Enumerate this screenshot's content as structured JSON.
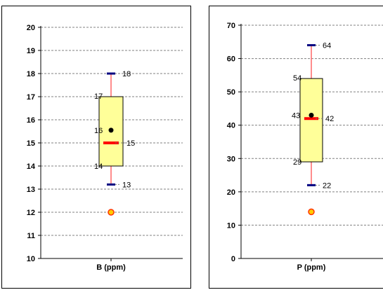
{
  "chart_data": [
    {
      "type": "box",
      "xlabel": "B (ppm)",
      "ylim": [
        10,
        20
      ],
      "yticks": [
        10,
        11,
        12,
        13,
        14,
        15,
        16,
        17,
        18,
        19,
        20
      ],
      "grid": true,
      "box": {
        "min": 13.2,
        "q1": 14,
        "median": 15,
        "mean": 15.55,
        "q3": 17,
        "max": 18,
        "outlier": 12
      },
      "labels": {
        "max": "18",
        "q3": "17",
        "mean": "16",
        "median": "15",
        "q1": "14",
        "min": "13"
      },
      "colors": {
        "box_fill": "#ffff99",
        "median": "#ff0000",
        "whisker": "#ff6666",
        "cap": "#000080",
        "outlier_fill": "#ffcc00",
        "outlier_stroke": "#ff3300",
        "mean": "#000000"
      }
    },
    {
      "type": "box",
      "xlabel": "P (ppm)",
      "ylim": [
        0,
        70
      ],
      "yticks": [
        0,
        10,
        20,
        30,
        40,
        50,
        60,
        70
      ],
      "grid": true,
      "box": {
        "min": 22,
        "q1": 29,
        "median": 42,
        "mean": 43,
        "q3": 54,
        "max": 64,
        "outlier": 14
      },
      "labels": {
        "max": "64",
        "q3": "54",
        "mean": "43",
        "median": "42",
        "q1": "29",
        "min": "22"
      },
      "colors": {
        "box_fill": "#ffff99",
        "median": "#ff0000",
        "whisker": "#ff6666",
        "cap": "#000080",
        "outlier_fill": "#ffcc00",
        "outlier_stroke": "#ff3300",
        "mean": "#000000"
      }
    }
  ]
}
